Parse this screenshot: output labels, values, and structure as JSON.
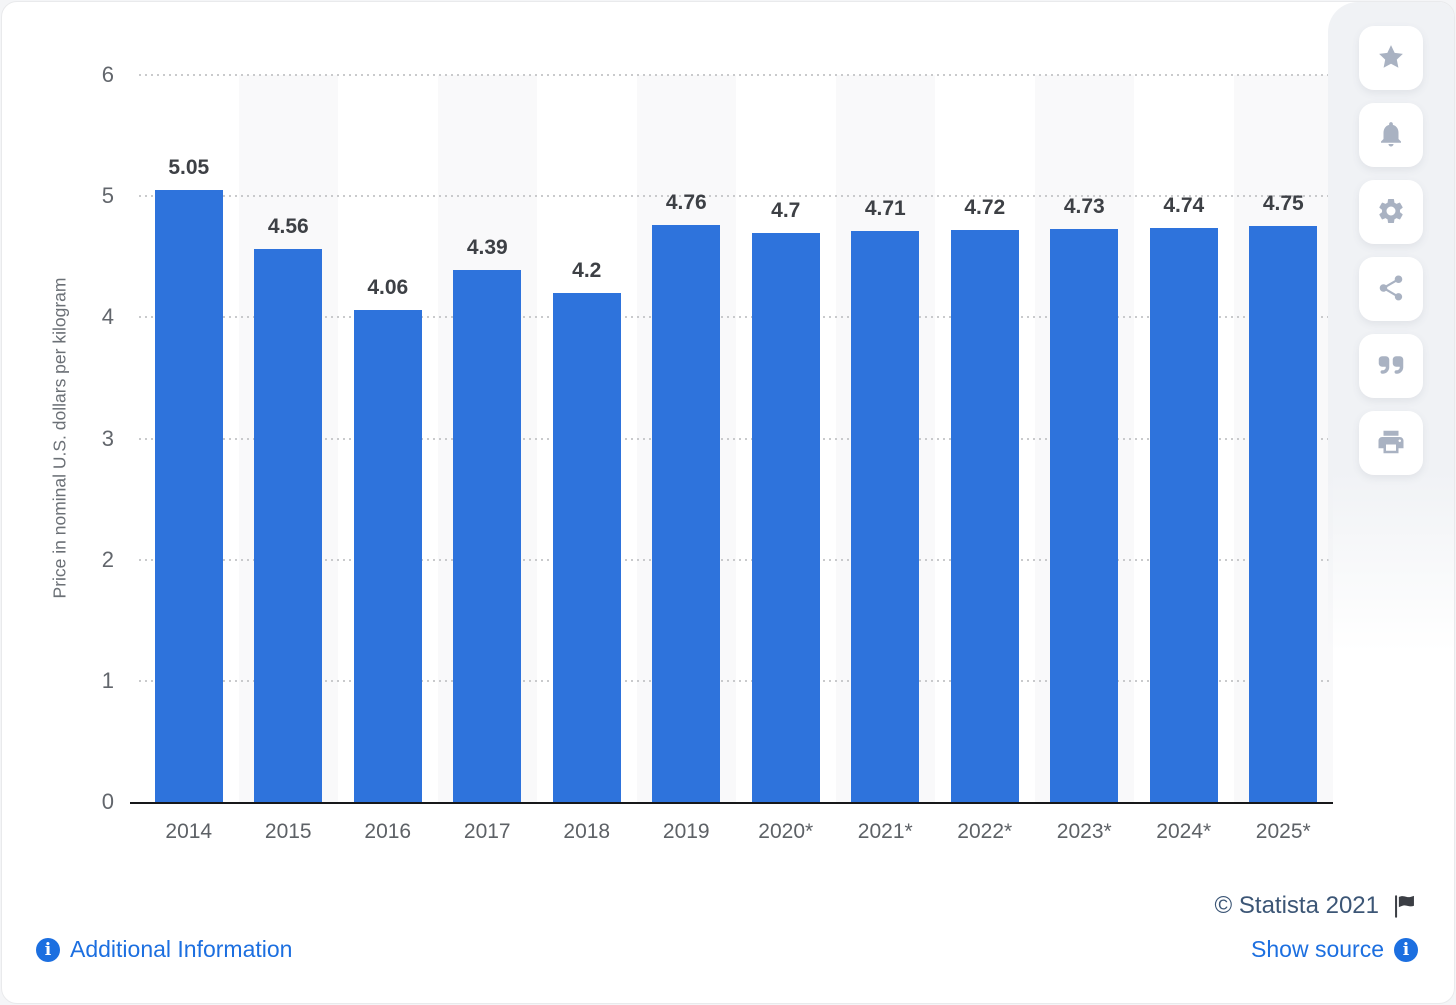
{
  "chart_data": {
    "type": "bar",
    "categories": [
      "2014",
      "2015",
      "2016",
      "2017",
      "2018",
      "2019",
      "2020*",
      "2021*",
      "2022*",
      "2023*",
      "2024*",
      "2025*"
    ],
    "values": [
      5.05,
      4.56,
      4.06,
      4.39,
      4.2,
      4.76,
      4.7,
      4.71,
      4.72,
      4.73,
      4.74,
      4.75
    ],
    "value_labels": [
      "5.05",
      "4.56",
      "4.06",
      "4.39",
      "4.2",
      "4.76",
      "4.7",
      "4.71",
      "4.72",
      "4.73",
      "4.74",
      "4.75"
    ],
    "title": "",
    "xlabel": "",
    "ylabel": "Price in nominal U.S. dollars per kilogram",
    "ylim": [
      0,
      6
    ],
    "yticks": [
      0,
      1,
      2,
      3,
      4,
      5,
      6
    ],
    "grid": true,
    "legend": false,
    "bar_color": "#2e73dc",
    "stripe_color": "#f9f9fa"
  },
  "toolbar": {
    "buttons": [
      {
        "name": "favorite",
        "icon": "star-icon"
      },
      {
        "name": "alerts",
        "icon": "bell-icon"
      },
      {
        "name": "settings",
        "icon": "gear-icon"
      },
      {
        "name": "share",
        "icon": "share-icon"
      },
      {
        "name": "cite",
        "icon": "quote-icon"
      },
      {
        "name": "print",
        "icon": "print-icon"
      }
    ]
  },
  "footer": {
    "copyright": "© Statista 2021",
    "additional_info_label": "Additional Information",
    "show_source_label": "Show source"
  },
  "colors": {
    "bar": "#2e73dc",
    "link": "#1c6fe0",
    "copyright_text": "#3c5676",
    "axis_text": "#62666c",
    "value_label_text": "#3d4045",
    "sidebar_icon": "#a9b2c2"
  }
}
